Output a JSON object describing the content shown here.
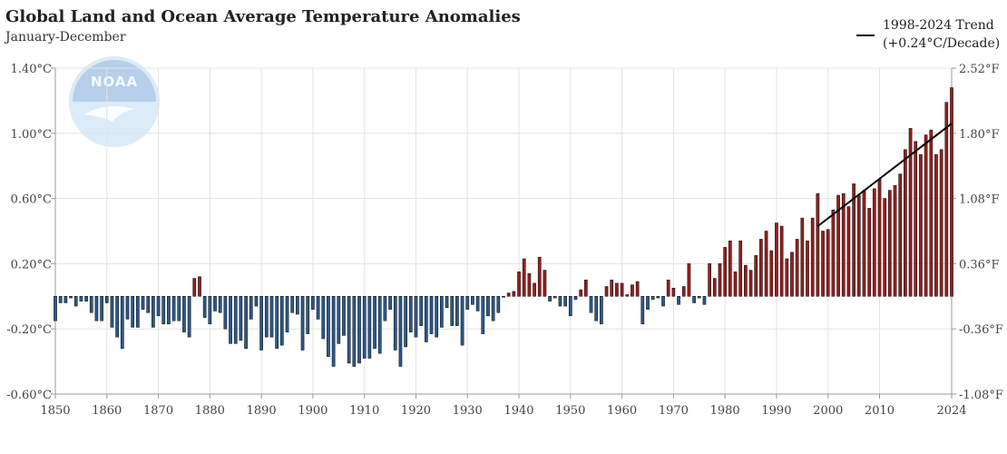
{
  "chart_data": {
    "type": "bar",
    "title": "Global Land and Ocean Average Temperature Anomalies",
    "subtitle": "January-December",
    "xlabel": "",
    "ylabel": "",
    "x": [
      1850,
      1851,
      1852,
      1853,
      1854,
      1855,
      1856,
      1857,
      1858,
      1859,
      1860,
      1861,
      1862,
      1863,
      1864,
      1865,
      1866,
      1867,
      1868,
      1869,
      1870,
      1871,
      1872,
      1873,
      1874,
      1875,
      1876,
      1877,
      1878,
      1879,
      1880,
      1881,
      1882,
      1883,
      1884,
      1885,
      1886,
      1887,
      1888,
      1889,
      1890,
      1891,
      1892,
      1893,
      1894,
      1895,
      1896,
      1897,
      1898,
      1899,
      1900,
      1901,
      1902,
      1903,
      1904,
      1905,
      1906,
      1907,
      1908,
      1909,
      1910,
      1911,
      1912,
      1913,
      1914,
      1915,
      1916,
      1917,
      1918,
      1919,
      1920,
      1921,
      1922,
      1923,
      1924,
      1925,
      1926,
      1927,
      1928,
      1929,
      1930,
      1931,
      1932,
      1933,
      1934,
      1935,
      1936,
      1937,
      1938,
      1939,
      1940,
      1941,
      1942,
      1943,
      1944,
      1945,
      1946,
      1947,
      1948,
      1949,
      1950,
      1951,
      1952,
      1953,
      1954,
      1955,
      1956,
      1957,
      1958,
      1959,
      1960,
      1961,
      1962,
      1963,
      1964,
      1965,
      1966,
      1967,
      1968,
      1969,
      1970,
      1971,
      1972,
      1973,
      1974,
      1975,
      1976,
      1977,
      1978,
      1979,
      1980,
      1981,
      1982,
      1983,
      1984,
      1985,
      1986,
      1987,
      1988,
      1989,
      1990,
      1991,
      1992,
      1993,
      1994,
      1995,
      1996,
      1997,
      1998,
      1999,
      2000,
      2001,
      2002,
      2003,
      2004,
      2005,
      2006,
      2007,
      2008,
      2009,
      2010,
      2011,
      2012,
      2013,
      2014,
      2015,
      2016,
      2017,
      2018,
      2019,
      2020,
      2021,
      2022,
      2023,
      2024
    ],
    "values": [
      -0.15,
      -0.04,
      -0.04,
      -0.01,
      -0.06,
      -0.03,
      -0.03,
      -0.1,
      -0.15,
      -0.15,
      -0.04,
      -0.19,
      -0.25,
      -0.32,
      -0.14,
      -0.19,
      -0.19,
      -0.08,
      -0.1,
      -0.19,
      -0.12,
      -0.17,
      -0.17,
      -0.15,
      -0.15,
      -0.22,
      -0.25,
      0.11,
      0.12,
      -0.13,
      -0.17,
      -0.09,
      -0.1,
      -0.2,
      -0.29,
      -0.29,
      -0.27,
      -0.32,
      -0.14,
      -0.06,
      -0.33,
      -0.25,
      -0.25,
      -0.32,
      -0.3,
      -0.22,
      -0.1,
      -0.11,
      -0.33,
      -0.23,
      -0.08,
      -0.14,
      -0.26,
      -0.37,
      -0.43,
      -0.29,
      -0.24,
      -0.41,
      -0.43,
      -0.41,
      -0.38,
      -0.38,
      -0.32,
      -0.35,
      -0.15,
      -0.08,
      -0.33,
      -0.43,
      -0.31,
      -0.22,
      -0.25,
      -0.18,
      -0.28,
      -0.23,
      -0.25,
      -0.19,
      -0.07,
      -0.18,
      -0.18,
      -0.3,
      -0.08,
      -0.05,
      -0.09,
      -0.23,
      -0.12,
      -0.15,
      -0.1,
      0.0,
      0.02,
      0.03,
      0.15,
      0.23,
      0.14,
      0.08,
      0.24,
      0.16,
      -0.03,
      -0.01,
      -0.06,
      -0.06,
      -0.12,
      -0.02,
      0.04,
      0.1,
      -0.1,
      -0.15,
      -0.17,
      0.06,
      0.1,
      0.08,
      0.08,
      0.01,
      0.07,
      0.09,
      -0.17,
      -0.08,
      -0.02,
      -0.01,
      -0.06,
      0.1,
      0.05,
      -0.05,
      0.06,
      0.2,
      -0.04,
      -0.01,
      -0.05,
      0.2,
      0.11,
      0.2,
      0.3,
      0.34,
      0.15,
      0.34,
      0.19,
      0.16,
      0.25,
      0.35,
      0.4,
      0.28,
      0.45,
      0.43,
      0.23,
      0.27,
      0.35,
      0.48,
      0.34,
      0.48,
      0.63,
      0.4,
      0.41,
      0.53,
      0.62,
      0.63,
      0.55,
      0.69,
      0.62,
      0.65,
      0.54,
      0.66,
      0.72,
      0.6,
      0.65,
      0.68,
      0.75,
      0.9,
      1.03,
      0.95,
      0.87,
      0.99,
      1.02,
      0.87,
      0.9,
      1.19,
      1.28
    ],
    "ylim": [
      -0.6,
      1.4
    ],
    "xlim": [
      1850,
      2024
    ],
    "y_ticks": [
      "1.40°C",
      "1.00°C",
      "0.60°C",
      "0.20°C",
      "-0.20°C",
      "-0.60°C"
    ],
    "y_right_ticks": [
      "2.52°F",
      "1.80°F",
      "1.08°F",
      "0.36°F",
      "-0.36°F",
      "-1.08°F"
    ],
    "x_ticks": [
      "1850",
      "1860",
      "1870",
      "1880",
      "1890",
      "1900",
      "1910",
      "1920",
      "1930",
      "1940",
      "1950",
      "1960",
      "1970",
      "1980",
      "1990",
      "2000",
      "2010",
      "2024"
    ],
    "grid": true,
    "colors": {
      "positive": "#9b1c1c",
      "negative": "#2a5a8f",
      "outline": "#1a1a1a",
      "trend": "#000000"
    },
    "trend": {
      "name": "1998-2024 Trend",
      "rate": "(+0.24°C/Decade)",
      "x": [
        1998,
        2024
      ],
      "y": [
        0.43,
        1.06
      ]
    },
    "legend_placement": "top-right",
    "watermark": "NOAA"
  }
}
